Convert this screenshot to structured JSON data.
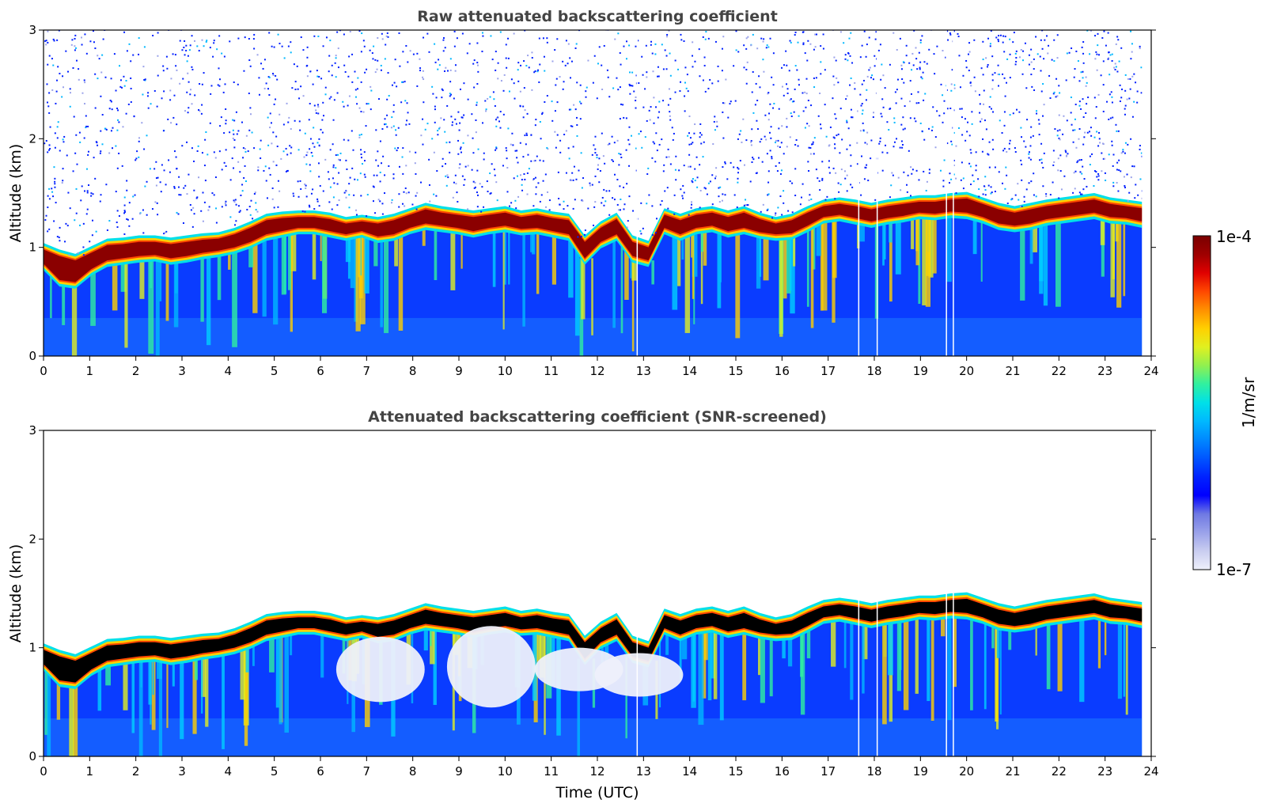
{
  "chart_data": [
    {
      "type": "heatmap",
      "title": "Raw attenuated backscattering coefficient",
      "xlabel": "",
      "ylabel": "Altitude (km)",
      "xlim": [
        0,
        24
      ],
      "ylim": [
        0,
        3
      ],
      "xticks": [
        "0",
        "1",
        "2",
        "3",
        "4",
        "5",
        "6",
        "7",
        "8",
        "9",
        "10",
        "11",
        "12",
        "13",
        "14",
        "15",
        "16",
        "17",
        "18",
        "19",
        "20",
        "21",
        "22",
        "23",
        "24"
      ],
      "yticks": [
        "0",
        "1",
        "2",
        "3"
      ],
      "grid": false,
      "noise": "high",
      "layer_top_km": [
        0.98,
        0.92,
        0.88,
        0.95,
        1.02,
        1.03,
        1.05,
        1.05,
        1.03,
        1.05,
        1.07,
        1.08,
        1.12,
        1.18,
        1.25,
        1.27,
        1.28,
        1.28,
        1.26,
        1.22,
        1.24,
        1.22,
        1.25,
        1.3,
        1.35,
        1.32,
        1.3,
        1.28,
        1.3,
        1.32,
        1.28,
        1.3,
        1.27,
        1.25,
        1.05,
        1.18,
        1.26,
        1.05,
        1.0,
        1.3,
        1.25,
        1.3,
        1.32,
        1.28,
        1.32,
        1.26,
        1.22,
        1.25,
        1.32,
        1.38,
        1.4,
        1.38,
        1.35,
        1.38,
        1.4,
        1.42,
        1.42,
        1.44,
        1.45,
        1.4,
        1.35,
        1.32,
        1.35,
        1.38,
        1.4,
        1.42,
        1.44,
        1.4,
        1.38,
        1.36
      ],
      "layer_base_km": [
        0.85,
        0.7,
        0.68,
        0.8,
        0.88,
        0.9,
        0.92,
        0.93,
        0.9,
        0.92,
        0.95,
        0.97,
        1.0,
        1.05,
        1.12,
        1.15,
        1.18,
        1.18,
        1.15,
        1.12,
        1.15,
        1.1,
        1.12,
        1.18,
        1.22,
        1.2,
        1.18,
        1.15,
        1.18,
        1.2,
        1.17,
        1.18,
        1.15,
        1.12,
        0.9,
        1.05,
        1.12,
        0.92,
        0.88,
        1.18,
        1.12,
        1.18,
        1.2,
        1.15,
        1.18,
        1.14,
        1.12,
        1.13,
        1.2,
        1.28,
        1.3,
        1.27,
        1.24,
        1.27,
        1.29,
        1.32,
        1.31,
        1.33,
        1.32,
        1.28,
        1.22,
        1.2,
        1.22,
        1.26,
        1.28,
        1.3,
        1.32,
        1.28,
        1.27,
        1.24
      ]
    },
    {
      "type": "heatmap",
      "title": "Attenuated backscattering coefficient (SNR-screened)",
      "xlabel": "Time (UTC)",
      "ylabel": "Altitude (km)",
      "xlim": [
        0,
        24
      ],
      "ylim": [
        0,
        3
      ],
      "xticks": [
        "0",
        "1",
        "2",
        "3",
        "4",
        "5",
        "6",
        "7",
        "8",
        "9",
        "10",
        "11",
        "12",
        "13",
        "14",
        "15",
        "16",
        "17",
        "18",
        "19",
        "20",
        "21",
        "22",
        "23",
        "24"
      ],
      "yticks": [
        "0",
        "1",
        "2",
        "3"
      ],
      "grid": false,
      "noise": "screened",
      "layer_top_km": [
        0.98,
        0.92,
        0.88,
        0.95,
        1.02,
        1.03,
        1.05,
        1.05,
        1.03,
        1.05,
        1.07,
        1.08,
        1.12,
        1.18,
        1.25,
        1.27,
        1.28,
        1.28,
        1.26,
        1.22,
        1.24,
        1.22,
        1.25,
        1.3,
        1.35,
        1.32,
        1.3,
        1.28,
        1.3,
        1.32,
        1.28,
        1.3,
        1.27,
        1.25,
        1.05,
        1.18,
        1.26,
        1.05,
        1.0,
        1.3,
        1.25,
        1.3,
        1.32,
        1.28,
        1.32,
        1.26,
        1.22,
        1.25,
        1.32,
        1.38,
        1.4,
        1.38,
        1.35,
        1.38,
        1.4,
        1.42,
        1.42,
        1.44,
        1.45,
        1.4,
        1.35,
        1.32,
        1.35,
        1.38,
        1.4,
        1.42,
        1.44,
        1.4,
        1.38,
        1.36
      ],
      "layer_base_km": [
        0.85,
        0.7,
        0.68,
        0.8,
        0.88,
        0.9,
        0.92,
        0.93,
        0.9,
        0.92,
        0.95,
        0.97,
        1.0,
        1.05,
        1.12,
        1.15,
        1.18,
        1.18,
        1.15,
        1.12,
        1.15,
        1.1,
        1.12,
        1.18,
        1.22,
        1.2,
        1.18,
        1.15,
        1.18,
        1.2,
        1.17,
        1.18,
        1.15,
        1.12,
        0.9,
        1.05,
        1.12,
        0.92,
        0.88,
        1.18,
        1.12,
        1.18,
        1.2,
        1.15,
        1.18,
        1.14,
        1.12,
        1.13,
        1.2,
        1.28,
        1.3,
        1.27,
        1.24,
        1.27,
        1.29,
        1.32,
        1.31,
        1.33,
        1.32,
        1.28,
        1.22,
        1.2,
        1.22,
        1.26,
        1.28,
        1.3,
        1.32,
        1.28,
        1.27,
        1.24
      ]
    }
  ],
  "colorbar": {
    "max_label": "1e-4",
    "min_label": "1e-7",
    "unit_label": "1/m/sr",
    "colors": [
      "#eef0fb",
      "#c9cdf0",
      "#9aa2ea",
      "#6f79e3",
      "#0000ff",
      "#0022ff",
      "#0055ff",
      "#0088ff",
      "#00b8ff",
      "#00e0e8",
      "#30f0a0",
      "#90f050",
      "#e0f020",
      "#ffd000",
      "#ff9000",
      "#ff4800",
      "#e00000",
      "#9e0000",
      "#7a0000"
    ]
  },
  "colors": {
    "title": "#444444",
    "layer_core": "#8b0000",
    "screened_core": "#000000"
  }
}
